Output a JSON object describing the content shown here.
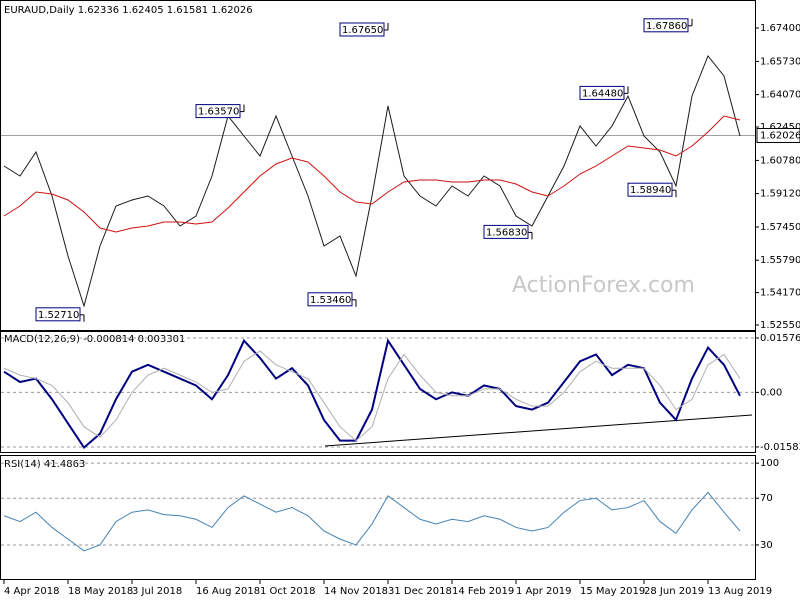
{
  "chart_data": [
    {
      "type": "line",
      "title": "EURAUD,Daily 1.62336 1.62405 1.61581 1.62026",
      "watermark": "ActionForex.com",
      "categories": [
        "4 Apr 2018",
        null,
        null,
        null,
        "18 May 2018",
        null,
        null,
        null,
        "3 Jul 2018",
        null,
        null,
        null,
        "16 Aug 2018",
        null,
        null,
        null,
        "1 Oct 2018",
        null,
        null,
        null,
        "14 Nov 2018",
        null,
        null,
        null,
        "31 Dec 2018",
        null,
        null,
        null,
        "14 Feb 2019",
        null,
        null,
        null,
        "1 Apr 2019",
        null,
        null,
        null,
        "15 May 2019",
        null,
        null,
        null,
        "28 Jun 2019",
        null,
        null,
        null,
        "13 Aug 2019",
        null,
        null
      ],
      "series": [
        {
          "color": "#1a1a1a",
          "values": [
            1.605,
            1.6,
            1.612,
            1.59,
            1.56,
            1.535,
            1.565,
            1.585,
            1.588,
            1.59,
            1.585,
            1.575,
            1.58,
            1.6,
            1.63,
            1.62,
            1.61,
            1.63,
            1.61,
            1.59,
            1.565,
            1.57,
            1.55,
            1.59,
            1.635,
            1.6,
            1.59,
            1.585,
            1.595,
            1.59,
            1.6,
            1.595,
            1.58,
            1.575,
            1.59,
            1.605,
            1.625,
            1.615,
            1.625,
            1.64,
            1.62,
            1.612,
            1.595,
            1.64,
            1.66,
            1.65,
            1.62
          ]
        },
        {
          "color": "#d01010",
          "values": [
            1.58,
            1.585,
            1.592,
            1.591,
            1.588,
            1.582,
            1.574,
            1.572,
            1.574,
            1.575,
            1.577,
            1.577,
            1.576,
            1.577,
            1.584,
            1.592,
            1.6,
            1.606,
            1.609,
            1.607,
            1.6,
            1.592,
            1.587,
            1.586,
            1.592,
            1.597,
            1.598,
            1.598,
            1.597,
            1.597,
            1.598,
            1.598,
            1.596,
            1.592,
            1.59,
            1.595,
            1.601,
            1.605,
            1.61,
            1.615,
            1.614,
            1.613,
            1.61,
            1.615,
            1.622,
            1.63,
            1.628
          ]
        }
      ],
      "annotations": [
        {
          "x": 5,
          "value": 1.5271,
          "label": "1.52710"
        },
        {
          "x": 15,
          "value": 1.6357,
          "label": "1.63570"
        },
        {
          "x": 22,
          "value": 1.5346,
          "label": "1.53460"
        },
        {
          "x": 24,
          "value": 1.6765,
          "label": "1.67650"
        },
        {
          "x": 33,
          "value": 1.5683,
          "label": "1.56830"
        },
        {
          "x": 39,
          "value": 1.6448,
          "label": "1.64480"
        },
        {
          "x": 42,
          "value": 1.5894,
          "label": "1.58940"
        },
        {
          "x": 43,
          "value": 1.6786,
          "label": "1.67860"
        }
      ],
      "last": 1.62026,
      "ylim": [
        1.523,
        1.6855
      ],
      "yticks": [
        {
          "value": 1.674,
          "label": "1.67400"
        },
        {
          "value": 1.6573,
          "label": "1.65730"
        },
        {
          "value": 1.6407,
          "label": "1.64070"
        },
        {
          "value": 1.6245,
          "label": "1.62450"
        },
        {
          "value": 1.6078,
          "label": "1.60780"
        },
        {
          "value": 1.5912,
          "label": "1.59120"
        },
        {
          "value": 1.5745,
          "label": "1.57450"
        },
        {
          "value": 1.5579,
          "label": "1.55790"
        },
        {
          "value": 1.5417,
          "label": "1.54170"
        },
        {
          "value": 1.5255,
          "label": "1.52550"
        }
      ],
      "grid": false
    },
    {
      "type": "line",
      "title": "MACD(12,26,9) -0.000814 0.003301",
      "series": [
        {
          "color": "#000080",
          "values": [
            0.006,
            0.003,
            0.004,
            -0.002,
            -0.009,
            -0.016,
            -0.012,
            -0.002,
            0.006,
            0.008,
            0.006,
            0.004,
            0.002,
            -0.002,
            0.005,
            0.015,
            0.01,
            0.004,
            0.007,
            0.002,
            -0.008,
            -0.014,
            -0.014,
            -0.005,
            0.015,
            0.008,
            0.001,
            -0.002,
            0.0,
            -0.001,
            0.002,
            0.001,
            -0.004,
            -0.005,
            -0.003,
            0.003,
            0.009,
            0.011,
            0.005,
            0.008,
            0.007,
            -0.003,
            -0.008,
            0.004,
            0.013,
            0.008,
            -0.001
          ]
        },
        {
          "color": "#b0b0b0",
          "values": [
            0.007,
            0.005,
            0.004,
            0.002,
            -0.003,
            -0.01,
            -0.013,
            -0.008,
            0.0,
            0.005,
            0.007,
            0.005,
            0.003,
            0.0,
            0.001,
            0.009,
            0.012,
            0.008,
            0.006,
            0.004,
            -0.003,
            -0.01,
            -0.014,
            -0.01,
            0.004,
            0.011,
            0.005,
            0.0,
            -0.001,
            -0.001,
            0.001,
            0.001,
            -0.002,
            -0.004,
            -0.004,
            0.0,
            0.006,
            0.009,
            0.007,
            0.007,
            0.007,
            0.002,
            -0.005,
            -0.002,
            0.008,
            0.011,
            0.004
          ]
        }
      ],
      "ylim": [
        -0.0173,
        0.0178
      ],
      "yticks": [
        0.015762,
        {
          "value": 0,
          "label": "0.00"
        },
        -0.015834
      ],
      "grid": true
    },
    {
      "type": "line",
      "title": "RSI(14) 41.4863",
      "series": [
        {
          "color": "#4682b4",
          "values": [
            55,
            50,
            58,
            45,
            35,
            25,
            30,
            50,
            58,
            60,
            56,
            55,
            52,
            45,
            62,
            72,
            65,
            58,
            62,
            55,
            42,
            35,
            30,
            48,
            72,
            62,
            52,
            48,
            52,
            50,
            55,
            52,
            45,
            42,
            45,
            58,
            68,
            70,
            60,
            62,
            68,
            50,
            40,
            60,
            75,
            58,
            42
          ]
        }
      ],
      "ylim": [
        0,
        107
      ],
      "yticks": [
        100,
        70,
        30
      ],
      "grid": true
    }
  ]
}
